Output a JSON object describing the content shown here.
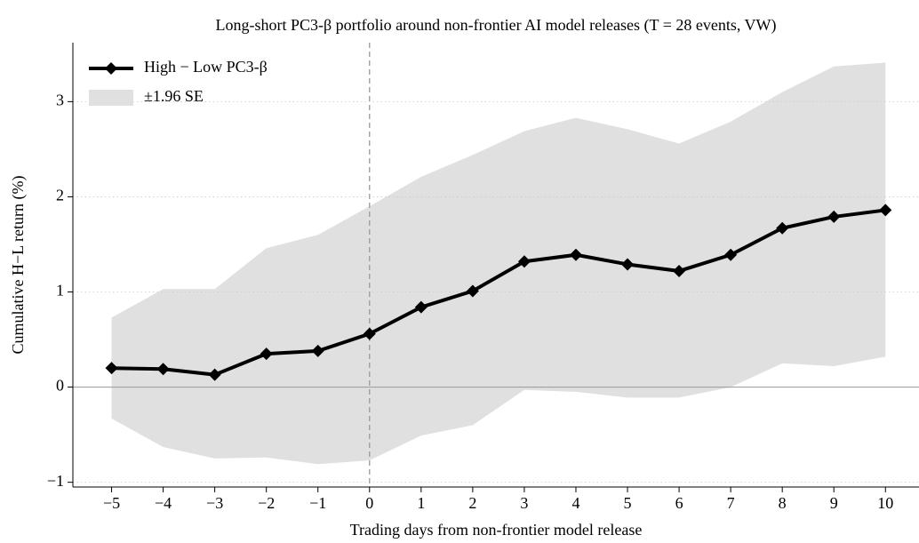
{
  "chart_data": {
    "type": "line",
    "title": "Long-short PC3-β portfolio around non-frontier AI model releases (T = 28 events, VW)",
    "xlabel": "Trading days from non-frontier model release",
    "ylabel": "Cumulative H−L return (%)",
    "x": [
      -5,
      -4,
      -3,
      -2,
      -1,
      0,
      1,
      2,
      3,
      4,
      5,
      6,
      7,
      8,
      9,
      10
    ],
    "series": [
      {
        "name": "High − Low PC3-β",
        "color": "#000000",
        "values": [
          0.2,
          0.19,
          0.13,
          0.35,
          0.38,
          0.56,
          0.84,
          1.01,
          1.32,
          1.39,
          1.29,
          1.22,
          1.39,
          1.67,
          1.79,
          1.86
        ]
      }
    ],
    "band": {
      "name": "±1.96 SE",
      "color": "#e0e0e0",
      "upper": [
        0.73,
        1.03,
        1.03,
        1.46,
        1.6,
        1.9,
        2.21,
        2.44,
        2.69,
        2.83,
        2.71,
        2.56,
        2.79,
        3.1,
        3.37,
        3.41
      ],
      "lower": [
        -0.33,
        -0.63,
        -0.75,
        -0.74,
        -0.81,
        -0.77,
        -0.51,
        -0.4,
        -0.03,
        -0.05,
        -0.11,
        -0.11,
        0.0,
        0.25,
        0.22,
        0.32
      ]
    },
    "xlim": [
      -5.75,
      10.65
    ],
    "ylim": [
      -1.05,
      3.62
    ],
    "xticks": [
      {
        "value": -5,
        "label": "−5"
      },
      {
        "value": -4,
        "label": "−4"
      },
      {
        "value": -3,
        "label": "−3"
      },
      {
        "value": -2,
        "label": "−2"
      },
      {
        "value": -1,
        "label": "−1"
      },
      0,
      1,
      2,
      3,
      4,
      5,
      6,
      7,
      8,
      9,
      10
    ],
    "yticks": [
      {
        "value": -1,
        "label": "−1"
      },
      0,
      1,
      2,
      3
    ],
    "grid": "y",
    "hline": 0,
    "vline": 0,
    "legend": "upper left"
  }
}
